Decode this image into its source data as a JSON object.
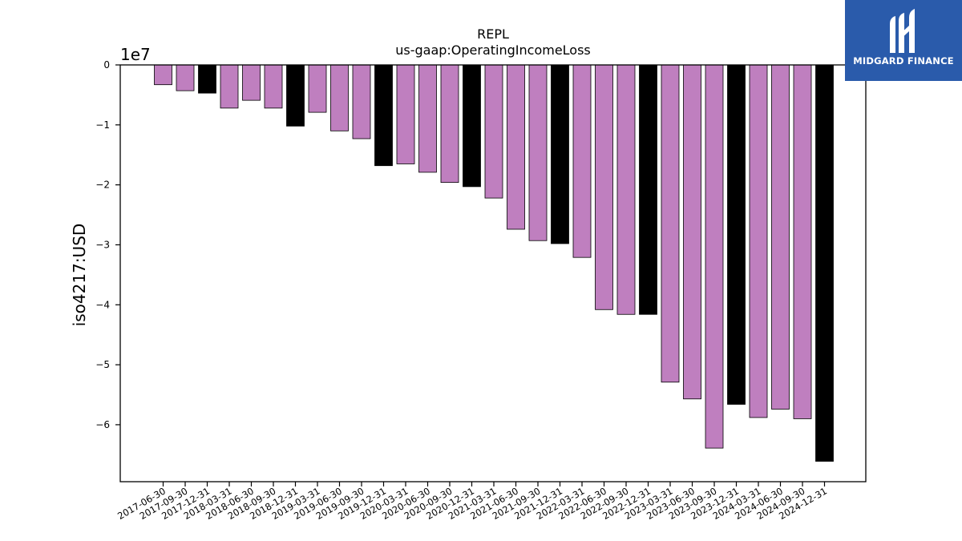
{
  "brand": {
    "name": "MIDGARD FINANCE",
    "color": "#2a5bab",
    "icon": "midgard-logo-icon"
  },
  "colors": {
    "quarter_bar": "#bf7fbf",
    "year_end_bar": "#000000",
    "bar_edge": "#000000",
    "axis": "#000000"
  },
  "chart_data": {
    "type": "bar",
    "title": "REPL",
    "subtitle": "us-gaap:OperatingIncomeLoss",
    "ylabel": "iso4217:USD",
    "xlabel": "",
    "y_offset_text": "1e7",
    "ylim": [
      -69500000.0,
      0
    ],
    "yticks": [
      0,
      -1,
      -2,
      -3,
      -4,
      -5,
      -6
    ],
    "ytick_labels": [
      "0",
      "−1",
      "−2",
      "−3",
      "−4",
      "−5",
      "−6"
    ],
    "grid": false,
    "legend": "none",
    "categories": [
      "2017-06-30",
      "2017-09-30",
      "2017-12-31",
      "2018-03-31",
      "2018-06-30",
      "2018-09-30",
      "2018-12-31",
      "2019-03-31",
      "2019-06-30",
      "2019-09-30",
      "2019-12-31",
      "2020-03-31",
      "2020-06-30",
      "2020-09-30",
      "2020-12-31",
      "2021-03-31",
      "2021-06-30",
      "2021-09-30",
      "2021-12-31",
      "2022-03-31",
      "2022-06-30",
      "2022-09-30",
      "2022-12-31",
      "2023-03-31",
      "2023-06-30",
      "2023-09-30",
      "2023-12-31",
      "2024-03-31",
      "2024-06-30",
      "2024-09-30",
      "2024-12-31"
    ],
    "values": [
      -3300000,
      -4300000,
      -4700000,
      -7200000,
      -5900000,
      -7200000,
      -10200000,
      -7900000,
      -11000000,
      -12300000,
      -16800000,
      -16500000,
      -17900000,
      -19600000,
      -20300000,
      -22200000,
      -27400000,
      -29300000,
      -29800000,
      -32100000,
      -40800000,
      -41600000,
      -41600000,
      -52900000,
      -55700000,
      -63900000,
      -56600000,
      -58800000,
      -57400000,
      -59000000,
      -66100000
    ],
    "year_end_highlight": [
      false,
      false,
      true,
      false,
      false,
      false,
      true,
      false,
      false,
      false,
      true,
      false,
      false,
      false,
      true,
      false,
      false,
      false,
      true,
      false,
      false,
      false,
      true,
      false,
      false,
      false,
      true,
      false,
      false,
      false,
      true
    ]
  }
}
